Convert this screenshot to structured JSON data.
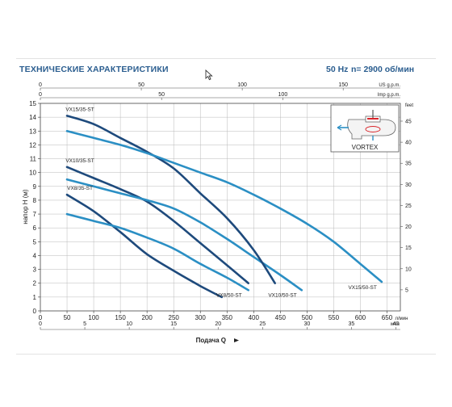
{
  "header": {
    "title": "ТЕХНИЧЕСКИЕ ХАРАКТЕРИСТИКИ",
    "frequency": "50 Hz",
    "speed": "n= 2900 об/мин"
  },
  "colors": {
    "dark_series": "#1e4a7c",
    "light_series": "#2b8fc4",
    "grid": "#b9b9b9",
    "title": "#2a5d8f"
  },
  "cursor_icon": "mouse-pointer-icon",
  "vortex_inset": {
    "label": "VORTEX",
    "icon": "vortex-impeller-icon"
  },
  "chart_data": {
    "type": "line",
    "xlabel": "Подача Q",
    "ylabel": "напор H (м)",
    "xlim": [
      0,
      675
    ],
    "ylim": [
      0,
      15
    ],
    "grid": true,
    "x_ticks": [
      0,
      50,
      100,
      150,
      200,
      250,
      300,
      350,
      400,
      450,
      500,
      550,
      600,
      650
    ],
    "x_unit_label": "л/мин",
    "y_ticks": [
      0,
      1,
      2,
      3,
      4,
      5,
      6,
      7,
      8,
      9,
      10,
      11,
      12,
      13,
      14,
      15
    ],
    "secondary_axes": {
      "top_us": {
        "unit": "US g.p.m.",
        "ticks": [
          0,
          50,
          100,
          150
        ]
      },
      "top_imp": {
        "unit": "Imp g.p.m.",
        "ticks": [
          0,
          50,
          100
        ]
      },
      "bottom_m3h": {
        "unit": "м³/ч",
        "ticks": [
          0,
          5,
          10,
          15,
          20,
          25,
          30,
          35,
          40
        ]
      },
      "right_feet": {
        "unit": "feet",
        "ticks": [
          5,
          10,
          15,
          20,
          25,
          30,
          35,
          40,
          45
        ]
      }
    },
    "series": [
      {
        "name": "VX8/35-ST",
        "x": [
          50,
          100,
          150,
          200,
          250,
          300,
          340
        ],
        "y": [
          8.4,
          7.2,
          5.7,
          4.1,
          2.9,
          1.8,
          1.0
        ]
      },
      {
        "name": "VX8/50-ST",
        "x": [
          50,
          100,
          150,
          200,
          250,
          300,
          350,
          390
        ],
        "y": [
          7.0,
          6.5,
          6.0,
          5.3,
          4.5,
          3.4,
          2.4,
          1.5
        ]
      },
      {
        "name": "VX10/35-ST",
        "x": [
          50,
          100,
          150,
          200,
          250,
          300,
          350,
          390
        ],
        "y": [
          10.4,
          9.6,
          8.8,
          7.9,
          6.5,
          4.9,
          3.3,
          2.0
        ]
      },
      {
        "name": "VX10/50-ST",
        "x": [
          50,
          100,
          150,
          200,
          250,
          300,
          350,
          400,
          450,
          490
        ],
        "y": [
          9.5,
          9.0,
          8.5,
          8.0,
          7.4,
          6.4,
          5.2,
          3.9,
          2.6,
          1.5
        ]
      },
      {
        "name": "VX15/35-ST",
        "x": [
          50,
          100,
          150,
          200,
          250,
          300,
          350,
          400,
          440
        ],
        "y": [
          14.1,
          13.5,
          12.5,
          11.5,
          10.3,
          8.5,
          6.7,
          4.4,
          2.0
        ]
      },
      {
        "name": "VX15/50-ST",
        "x": [
          50,
          100,
          150,
          200,
          250,
          300,
          350,
          400,
          450,
          500,
          550,
          600,
          640
        ],
        "y": [
          13.0,
          12.5,
          12.0,
          11.4,
          10.7,
          10.0,
          9.3,
          8.4,
          7.4,
          6.3,
          5.0,
          3.4,
          2.1
        ]
      }
    ],
    "series_labels": [
      {
        "series": 0,
        "text": "VX8/35-ST"
      },
      {
        "series": 1,
        "text": "VX8/50-ST"
      },
      {
        "series": 2,
        "text": "VX10/35-ST"
      },
      {
        "series": 3,
        "text": "VX10/50-ST"
      },
      {
        "series": 4,
        "text": "VX15/35-ST"
      },
      {
        "series": 5,
        "text": "VX15/50-ST"
      }
    ]
  }
}
